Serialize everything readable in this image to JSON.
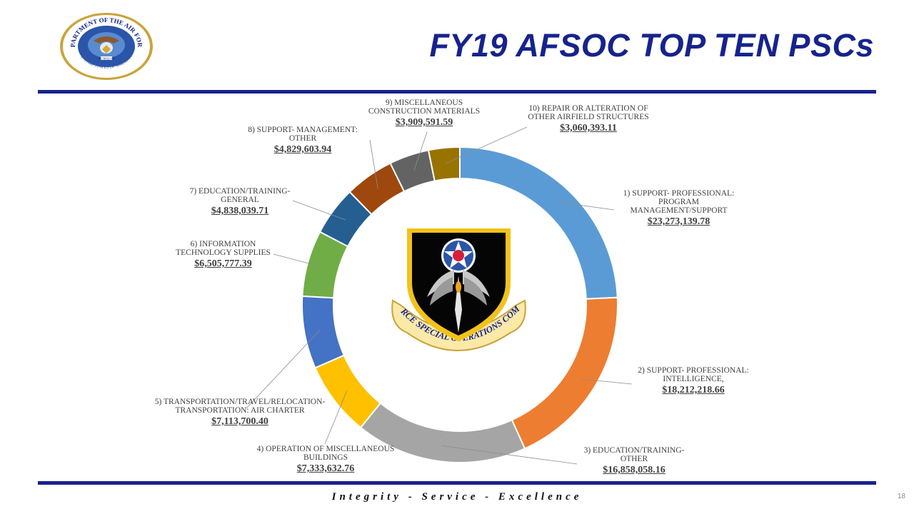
{
  "slide": {
    "title": "FY19 AFSOC TOP TEN PSCs",
    "motto": "Integrity - Service - Excellence",
    "page_number": "18"
  },
  "colors": {
    "brand": "#17238c"
  },
  "seal": {
    "text": "DEPARTMENT OF THE AIR FORCE",
    "lower_text": "UNITED STATES OF AMERICA",
    "year": "MCMXLVII"
  },
  "emblem": {
    "text": "AIR FORCE SPECIAL OPERATIONS COMMAND"
  },
  "chart_data": {
    "type": "pie",
    "style": "doughnut",
    "title": "",
    "legend": "none",
    "slices": [
      {
        "label": "1) SUPPORT- PROFESSIONAL: PROGRAM MANAGEMENT/SUPPORT",
        "amount": "$23,273,139.78",
        "value": 23273139.78,
        "color": "#5B9BD5"
      },
      {
        "label": "2) SUPPORT- PROFESSIONAL: INTELLIGENCE,",
        "amount": "$18,212,218.66",
        "value": 18212218.66,
        "color": "#ED7D31"
      },
      {
        "label": "3) EDUCATION/TRAINING- OTHER",
        "amount": "$16,858,058.16",
        "value": 16858058.16,
        "color": "#A5A5A5"
      },
      {
        "label": "4) OPERATION OF MISCELLANEOUS BUILDINGS",
        "amount": "$7,333,632.76",
        "value": 7333632.76,
        "color": "#FFC000"
      },
      {
        "label": "5) TRANSPORTATION/TRAVEL/RELOCATION- TRANSPORTATION: AIR CHARTER",
        "amount": "$7,113,700.40",
        "value": 7113700.4,
        "color": "#4472C4"
      },
      {
        "label": "6) INFORMATION TECHNOLOGY SUPPLIES",
        "amount": "$6,505,777.39",
        "value": 6505777.39,
        "color": "#70AD47"
      },
      {
        "label": "7) EDUCATION/TRAINING- GENERAL",
        "amount": "$4,838,039.71",
        "value": 4838039.71,
        "color": "#255E91"
      },
      {
        "label": "8) SUPPORT- MANAGEMENT: OTHER",
        "amount": "$4,829,603.94",
        "value": 4829603.94,
        "color": "#9E480E"
      },
      {
        "label": "9) MISCELLANEOUS CONSTRUCTION MATERIALS",
        "amount": "$3,909,591.59",
        "value": 3909591.59,
        "color": "#636363"
      },
      {
        "label": "10) REPAIR OR ALTERATION OF OTHER AIRFIELD STRUCTURES",
        "amount": "$3,060,393.11",
        "value": 3060393.11,
        "color": "#997300"
      }
    ]
  }
}
